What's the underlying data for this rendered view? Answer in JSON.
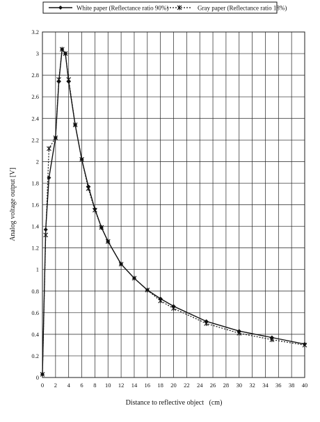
{
  "chart_data": {
    "type": "line",
    "title": "",
    "xlabel": "Distance to reflective object   (cm)",
    "ylabel": "Analog voltage output [V]",
    "xlim": [
      0,
      40
    ],
    "ylim": [
      0,
      3.2
    ],
    "xticks": [
      0,
      2,
      4,
      6,
      8,
      10,
      12,
      14,
      16,
      18,
      20,
      22,
      24,
      26,
      28,
      30,
      32,
      34,
      36,
      38,
      40
    ],
    "yticks": [
      0,
      0.2,
      0.4,
      0.6,
      0.8,
      1,
      1.2,
      1.4,
      1.6,
      1.8,
      2,
      2.2,
      2.4,
      2.6,
      2.8,
      3,
      3.2
    ],
    "xtick_labels": [
      "0",
      "2",
      "4",
      "6",
      "8",
      "10",
      "12",
      "14",
      "16",
      "18",
      "20",
      "22",
      "24",
      "26",
      "28",
      "30",
      "32",
      "34",
      "36",
      "38",
      "40"
    ],
    "ytick_labels": [
      "0",
      "0.2",
      "0.4",
      "0.6",
      "0.8",
      "1",
      "1.2",
      "1.4",
      "1.6",
      "1.8",
      "2",
      "2.2",
      "2.4",
      "2.6",
      "2.8",
      "3",
      "3.2"
    ],
    "grid": true,
    "legend_position": "top",
    "series": [
      {
        "name": "White paper (Reflectance ratio 90%)",
        "marker": "diamond",
        "line": "solid",
        "color": "#111111",
        "x": [
          0,
          0.5,
          1,
          2,
          2.5,
          3,
          3.5,
          4,
          5,
          6,
          7,
          8,
          9,
          10,
          12,
          14,
          16,
          18,
          20,
          25,
          30,
          35,
          40
        ],
        "y": [
          0.03,
          1.37,
          1.85,
          2.22,
          2.74,
          3.04,
          3.0,
          2.74,
          2.34,
          2.02,
          1.77,
          1.56,
          1.39,
          1.26,
          1.05,
          0.92,
          0.81,
          0.73,
          0.66,
          0.52,
          0.43,
          0.37,
          0.31
        ]
      },
      {
        "name": "Gray paper (Reflectance ratio 18%)",
        "marker": "asterisk",
        "line": "dotted",
        "color": "#111111",
        "x": [
          0,
          0.5,
          1,
          2,
          2.5,
          3,
          3.5,
          4,
          5,
          6,
          7,
          8,
          9,
          10,
          12,
          14,
          16,
          18,
          20,
          25,
          30,
          35,
          40
        ],
        "y": [
          0.03,
          1.32,
          2.12,
          2.22,
          2.76,
          3.04,
          3.0,
          2.76,
          2.34,
          2.02,
          1.75,
          1.55,
          1.39,
          1.26,
          1.05,
          0.92,
          0.81,
          0.71,
          0.64,
          0.5,
          0.41,
          0.35,
          0.3
        ]
      }
    ]
  }
}
